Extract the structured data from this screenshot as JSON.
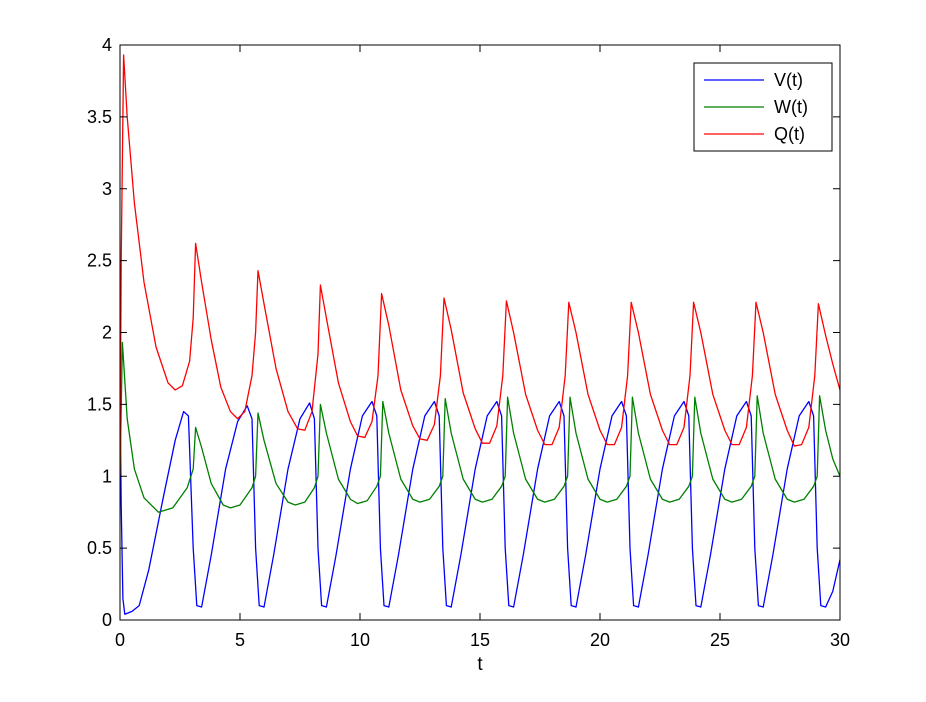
{
  "chart_data": {
    "type": "line",
    "title": "",
    "xlabel": "t",
    "ylabel": "",
    "xlim": [
      0,
      30
    ],
    "ylim": [
      0,
      4
    ],
    "xticks": [
      0,
      5,
      10,
      15,
      20,
      25,
      30
    ],
    "yticks": [
      0,
      0.5,
      1,
      1.5,
      2,
      2.5,
      3,
      3.5,
      4
    ],
    "xtick_labels": [
      "0",
      "5",
      "10",
      "15",
      "20",
      "25",
      "30"
    ],
    "ytick_labels": [
      "0",
      "0.5",
      "1",
      "1.5",
      "2",
      "2.5",
      "3",
      "3.5",
      "4"
    ],
    "grid": false,
    "legend_position": "top-right",
    "series": [
      {
        "name": "V(t)",
        "color": "#0000ff",
        "points": [
          [
            0,
            1.6
          ],
          [
            0.05,
            0.8
          ],
          [
            0.12,
            0.15
          ],
          [
            0.2,
            0.04
          ],
          [
            0.5,
            0.06
          ],
          [
            0.8,
            0.1
          ],
          [
            1.2,
            0.35
          ],
          [
            1.8,
            0.85
          ],
          [
            2.3,
            1.25
          ],
          [
            2.65,
            1.45
          ],
          [
            2.85,
            1.42
          ],
          [
            3.05,
            0.5
          ],
          [
            3.2,
            0.1
          ],
          [
            3.4,
            0.09
          ],
          [
            3.8,
            0.45
          ],
          [
            4.4,
            1.05
          ],
          [
            4.9,
            1.38
          ],
          [
            5.3,
            1.49
          ],
          [
            5.5,
            1.4
          ],
          [
            5.65,
            0.5
          ],
          [
            5.8,
            0.1
          ],
          [
            6.0,
            0.09
          ],
          [
            6.4,
            0.45
          ],
          [
            7.0,
            1.05
          ],
          [
            7.5,
            1.4
          ],
          [
            7.9,
            1.51
          ],
          [
            8.1,
            1.4
          ],
          [
            8.25,
            0.5
          ],
          [
            8.4,
            0.1
          ],
          [
            8.6,
            0.09
          ],
          [
            9.0,
            0.45
          ],
          [
            9.6,
            1.05
          ],
          [
            10.1,
            1.42
          ],
          [
            10.5,
            1.52
          ],
          [
            10.7,
            1.42
          ],
          [
            10.85,
            0.5
          ],
          [
            11.0,
            0.1
          ],
          [
            11.2,
            0.09
          ],
          [
            11.6,
            0.45
          ],
          [
            12.2,
            1.05
          ],
          [
            12.7,
            1.42
          ],
          [
            13.1,
            1.52
          ],
          [
            13.3,
            1.42
          ],
          [
            13.45,
            0.5
          ],
          [
            13.6,
            0.1
          ],
          [
            13.8,
            0.09
          ],
          [
            14.2,
            0.45
          ],
          [
            14.8,
            1.05
          ],
          [
            15.3,
            1.42
          ],
          [
            15.7,
            1.52
          ],
          [
            15.9,
            1.42
          ],
          [
            16.05,
            0.5
          ],
          [
            16.2,
            0.1
          ],
          [
            16.4,
            0.09
          ],
          [
            16.8,
            0.45
          ],
          [
            17.4,
            1.05
          ],
          [
            17.9,
            1.42
          ],
          [
            18.3,
            1.52
          ],
          [
            18.5,
            1.42
          ],
          [
            18.65,
            0.5
          ],
          [
            18.8,
            0.1
          ],
          [
            19.0,
            0.09
          ],
          [
            19.4,
            0.45
          ],
          [
            20.0,
            1.05
          ],
          [
            20.5,
            1.42
          ],
          [
            20.9,
            1.52
          ],
          [
            21.1,
            1.42
          ],
          [
            21.25,
            0.5
          ],
          [
            21.4,
            0.1
          ],
          [
            21.6,
            0.09
          ],
          [
            22.0,
            0.45
          ],
          [
            22.6,
            1.05
          ],
          [
            23.1,
            1.42
          ],
          [
            23.5,
            1.52
          ],
          [
            23.7,
            1.42
          ],
          [
            23.85,
            0.5
          ],
          [
            24.0,
            0.1
          ],
          [
            24.2,
            0.09
          ],
          [
            24.6,
            0.45
          ],
          [
            25.2,
            1.05
          ],
          [
            25.7,
            1.42
          ],
          [
            26.1,
            1.52
          ],
          [
            26.3,
            1.42
          ],
          [
            26.45,
            0.5
          ],
          [
            26.6,
            0.1
          ],
          [
            26.8,
            0.09
          ],
          [
            27.2,
            0.45
          ],
          [
            27.8,
            1.05
          ],
          [
            28.3,
            1.42
          ],
          [
            28.7,
            1.52
          ],
          [
            28.9,
            1.42
          ],
          [
            29.05,
            0.5
          ],
          [
            29.2,
            0.1
          ],
          [
            29.4,
            0.09
          ],
          [
            29.7,
            0.2
          ],
          [
            30,
            0.42
          ]
        ]
      },
      {
        "name": "W(t)",
        "color": "#008000",
        "points": [
          [
            0,
            1.0
          ],
          [
            0.1,
            1.93
          ],
          [
            0.3,
            1.4
          ],
          [
            0.6,
            1.05
          ],
          [
            1.0,
            0.85
          ],
          [
            1.6,
            0.75
          ],
          [
            2.2,
            0.78
          ],
          [
            2.8,
            0.92
          ],
          [
            3.05,
            1.05
          ],
          [
            3.15,
            1.34
          ],
          [
            3.4,
            1.2
          ],
          [
            3.8,
            0.95
          ],
          [
            4.3,
            0.8
          ],
          [
            4.6,
            0.78
          ],
          [
            5.0,
            0.8
          ],
          [
            5.5,
            0.92
          ],
          [
            5.65,
            1.0
          ],
          [
            5.75,
            1.44
          ],
          [
            6.0,
            1.25
          ],
          [
            6.5,
            0.95
          ],
          [
            7.0,
            0.82
          ],
          [
            7.3,
            0.8
          ],
          [
            7.7,
            0.82
          ],
          [
            8.1,
            0.92
          ],
          [
            8.25,
            1.0
          ],
          [
            8.35,
            1.5
          ],
          [
            8.6,
            1.3
          ],
          [
            9.1,
            0.98
          ],
          [
            9.6,
            0.84
          ],
          [
            9.9,
            0.81
          ],
          [
            10.3,
            0.83
          ],
          [
            10.7,
            0.93
          ],
          [
            10.85,
            1.0
          ],
          [
            10.95,
            1.52
          ],
          [
            11.2,
            1.3
          ],
          [
            11.7,
            0.98
          ],
          [
            12.2,
            0.84
          ],
          [
            12.5,
            0.82
          ],
          [
            12.9,
            0.84
          ],
          [
            13.3,
            0.93
          ],
          [
            13.45,
            1.0
          ],
          [
            13.55,
            1.54
          ],
          [
            13.8,
            1.3
          ],
          [
            14.3,
            0.98
          ],
          [
            14.8,
            0.84
          ],
          [
            15.1,
            0.82
          ],
          [
            15.5,
            0.84
          ],
          [
            15.9,
            0.93
          ],
          [
            16.05,
            1.0
          ],
          [
            16.15,
            1.55
          ],
          [
            16.4,
            1.3
          ],
          [
            16.9,
            0.98
          ],
          [
            17.4,
            0.84
          ],
          [
            17.7,
            0.82
          ],
          [
            18.1,
            0.84
          ],
          [
            18.5,
            0.93
          ],
          [
            18.65,
            1.0
          ],
          [
            18.75,
            1.55
          ],
          [
            19.0,
            1.3
          ],
          [
            19.5,
            0.98
          ],
          [
            20.0,
            0.84
          ],
          [
            20.3,
            0.82
          ],
          [
            20.7,
            0.84
          ],
          [
            21.1,
            0.93
          ],
          [
            21.25,
            1.0
          ],
          [
            21.35,
            1.55
          ],
          [
            21.6,
            1.3
          ],
          [
            22.1,
            0.98
          ],
          [
            22.6,
            0.84
          ],
          [
            22.9,
            0.82
          ],
          [
            23.3,
            0.84
          ],
          [
            23.7,
            0.93
          ],
          [
            23.85,
            1.0
          ],
          [
            23.95,
            1.55
          ],
          [
            24.2,
            1.3
          ],
          [
            24.7,
            0.98
          ],
          [
            25.2,
            0.84
          ],
          [
            25.5,
            0.82
          ],
          [
            25.9,
            0.84
          ],
          [
            26.3,
            0.93
          ],
          [
            26.45,
            1.0
          ],
          [
            26.55,
            1.56
          ],
          [
            26.8,
            1.3
          ],
          [
            27.3,
            0.98
          ],
          [
            27.8,
            0.84
          ],
          [
            28.1,
            0.82
          ],
          [
            28.5,
            0.84
          ],
          [
            28.9,
            0.93
          ],
          [
            29.05,
            1.0
          ],
          [
            29.15,
            1.56
          ],
          [
            29.4,
            1.32
          ],
          [
            29.7,
            1.12
          ],
          [
            30,
            1.0
          ]
        ]
      },
      {
        "name": "Q(t)",
        "color": "#ff0000",
        "points": [
          [
            0,
            1.0
          ],
          [
            0.05,
            2.5
          ],
          [
            0.15,
            3.93
          ],
          [
            0.3,
            3.5
          ],
          [
            0.6,
            2.9
          ],
          [
            1.0,
            2.35
          ],
          [
            1.5,
            1.9
          ],
          [
            2.0,
            1.65
          ],
          [
            2.3,
            1.6
          ],
          [
            2.6,
            1.63
          ],
          [
            2.9,
            1.8
          ],
          [
            3.05,
            2.1
          ],
          [
            3.15,
            2.62
          ],
          [
            3.4,
            2.35
          ],
          [
            3.8,
            1.95
          ],
          [
            4.2,
            1.62
          ],
          [
            4.6,
            1.45
          ],
          [
            4.9,
            1.4
          ],
          [
            5.2,
            1.45
          ],
          [
            5.5,
            1.7
          ],
          [
            5.65,
            2.0
          ],
          [
            5.75,
            2.43
          ],
          [
            6.0,
            2.2
          ],
          [
            6.5,
            1.75
          ],
          [
            7.0,
            1.45
          ],
          [
            7.4,
            1.33
          ],
          [
            7.7,
            1.32
          ],
          [
            8.0,
            1.45
          ],
          [
            8.25,
            1.85
          ],
          [
            8.35,
            2.33
          ],
          [
            8.6,
            2.1
          ],
          [
            9.1,
            1.65
          ],
          [
            9.6,
            1.38
          ],
          [
            9.9,
            1.28
          ],
          [
            10.2,
            1.27
          ],
          [
            10.5,
            1.38
          ],
          [
            10.75,
            1.7
          ],
          [
            10.9,
            2.27
          ],
          [
            11.2,
            2.05
          ],
          [
            11.7,
            1.6
          ],
          [
            12.2,
            1.35
          ],
          [
            12.5,
            1.26
          ],
          [
            12.8,
            1.25
          ],
          [
            13.1,
            1.36
          ],
          [
            13.35,
            1.7
          ],
          [
            13.5,
            2.24
          ],
          [
            13.8,
            2.02
          ],
          [
            14.3,
            1.58
          ],
          [
            14.8,
            1.33
          ],
          [
            15.1,
            1.23
          ],
          [
            15.4,
            1.23
          ],
          [
            15.7,
            1.35
          ],
          [
            15.95,
            1.7
          ],
          [
            16.1,
            2.22
          ],
          [
            16.4,
            2.0
          ],
          [
            16.9,
            1.57
          ],
          [
            17.4,
            1.32
          ],
          [
            17.7,
            1.22
          ],
          [
            18.0,
            1.22
          ],
          [
            18.3,
            1.34
          ],
          [
            18.55,
            1.7
          ],
          [
            18.7,
            2.21
          ],
          [
            19.0,
            2.0
          ],
          [
            19.5,
            1.57
          ],
          [
            20.0,
            1.32
          ],
          [
            20.3,
            1.22
          ],
          [
            20.6,
            1.22
          ],
          [
            20.9,
            1.34
          ],
          [
            21.15,
            1.7
          ],
          [
            21.3,
            2.21
          ],
          [
            21.6,
            2.0
          ],
          [
            22.1,
            1.57
          ],
          [
            22.6,
            1.32
          ],
          [
            22.9,
            1.22
          ],
          [
            23.2,
            1.22
          ],
          [
            23.5,
            1.34
          ],
          [
            23.75,
            1.7
          ],
          [
            23.9,
            2.21
          ],
          [
            24.2,
            2.0
          ],
          [
            24.7,
            1.57
          ],
          [
            25.2,
            1.32
          ],
          [
            25.5,
            1.22
          ],
          [
            25.8,
            1.22
          ],
          [
            26.1,
            1.34
          ],
          [
            26.35,
            1.7
          ],
          [
            26.5,
            2.21
          ],
          [
            26.8,
            2.0
          ],
          [
            27.3,
            1.57
          ],
          [
            27.8,
            1.32
          ],
          [
            28.1,
            1.21
          ],
          [
            28.4,
            1.22
          ],
          [
            28.7,
            1.34
          ],
          [
            28.95,
            1.7
          ],
          [
            29.1,
            2.2
          ],
          [
            29.4,
            1.98
          ],
          [
            29.7,
            1.78
          ],
          [
            30,
            1.6
          ]
        ]
      }
    ]
  }
}
